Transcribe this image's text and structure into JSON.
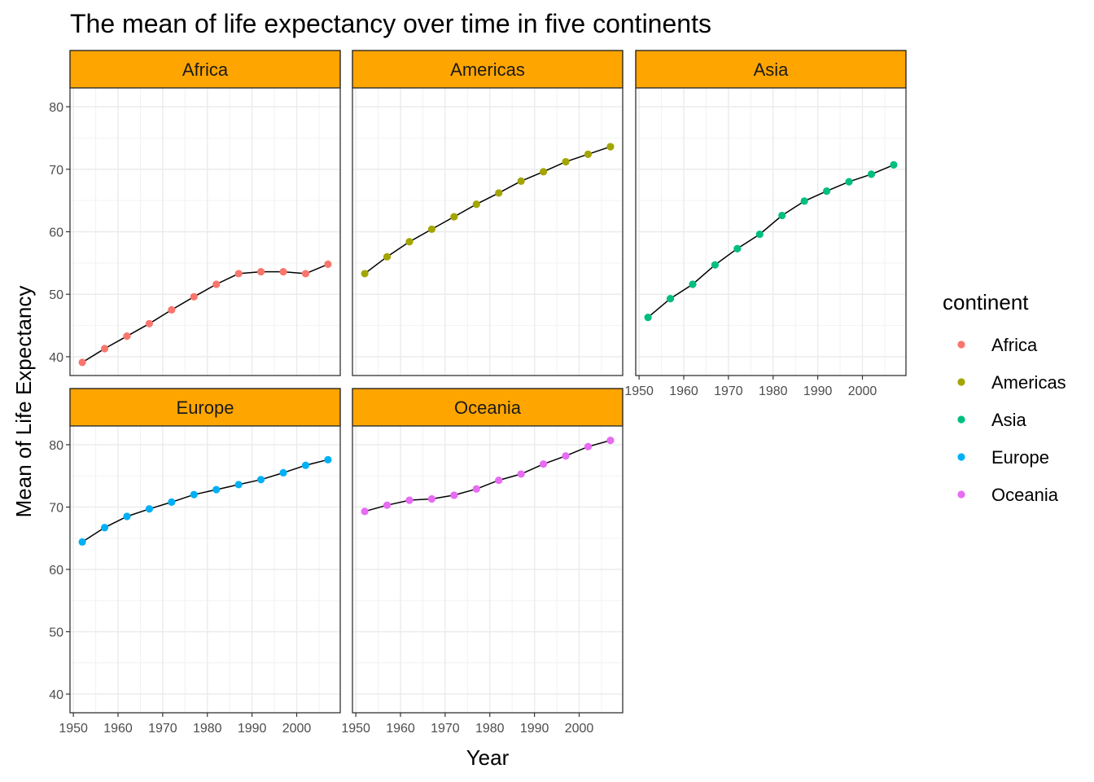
{
  "chart_data": {
    "type": "line",
    "title": "The mean of life expectancy over time in five continents",
    "xlabel": "Year",
    "ylabel": "Mean of Life Expectancy",
    "x": [
      1952,
      1957,
      1962,
      1967,
      1972,
      1977,
      1982,
      1987,
      1992,
      1997,
      2002,
      2007
    ],
    "xlim": [
      1949.25,
      2009.75
    ],
    "ylim": [
      37,
      83
    ],
    "xticks": [
      1950,
      1960,
      1970,
      1980,
      1990,
      2000
    ],
    "yticks": [
      40,
      50,
      60,
      70,
      80
    ],
    "grid": true,
    "facets_by": "continent",
    "strip_color": "#FFA500",
    "line_color": "#000000",
    "legend": {
      "title": "continent",
      "position": "right"
    },
    "series": [
      {
        "name": "Africa",
        "color": "#F8766D",
        "values": [
          39.1,
          41.3,
          43.3,
          45.3,
          47.5,
          49.6,
          51.6,
          53.3,
          53.6,
          53.6,
          53.3,
          54.8
        ]
      },
      {
        "name": "Americas",
        "color": "#A3A500",
        "values": [
          53.3,
          56.0,
          58.4,
          60.4,
          62.4,
          64.4,
          66.2,
          68.1,
          69.6,
          71.2,
          72.4,
          73.6
        ]
      },
      {
        "name": "Asia",
        "color": "#00BF7D",
        "values": [
          46.3,
          49.3,
          51.6,
          54.7,
          57.3,
          59.6,
          62.6,
          64.9,
          66.5,
          68.0,
          69.2,
          70.7
        ]
      },
      {
        "name": "Europe",
        "color": "#00B0F6",
        "values": [
          64.4,
          66.7,
          68.5,
          69.7,
          70.8,
          72.0,
          72.8,
          73.6,
          74.4,
          75.5,
          76.7,
          77.6
        ]
      },
      {
        "name": "Oceania",
        "color": "#E76BF3",
        "values": [
          69.3,
          70.3,
          71.1,
          71.3,
          71.9,
          72.9,
          74.3,
          75.3,
          76.9,
          78.2,
          79.7,
          80.7
        ]
      }
    ]
  }
}
